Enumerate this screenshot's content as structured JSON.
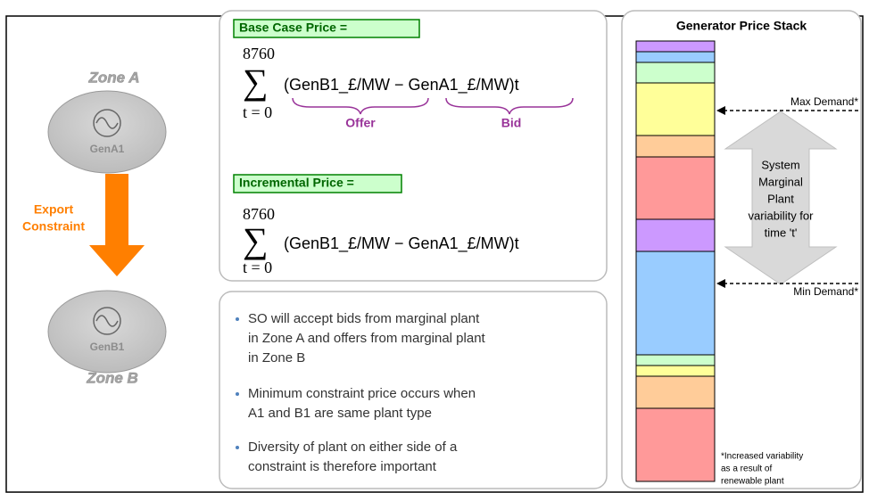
{
  "left": {
    "zone_a": "Zone A",
    "gen_a": "GenA1",
    "export": [
      "Export",
      "Constraint"
    ],
    "gen_b": "GenB1",
    "zone_b": "Zone B"
  },
  "base_case": {
    "label": "Base Case Price =",
    "upper": "8760",
    "sigma": "∑",
    "expr": "(GenB1_£/MW − GenA1_£/MW)t",
    "lower": "t = 0",
    "offer": "Offer",
    "bid": "Bid"
  },
  "incremental": {
    "label": "Incremental Price =",
    "upper": "8760",
    "sigma": "∑",
    "expr": "(GenB1_£/MW − GenA1_£/MW)t",
    "lower": "t = 0"
  },
  "bullets": [
    [
      "SO will accept bids from marginal plant",
      "in Zone A and offers from marginal plant",
      "in Zone B"
    ],
    [
      "Minimum constraint price occurs when",
      "A1 and B1 are same plant type"
    ],
    [
      "Diversity of plant on either side of a",
      "constraint is therefore important"
    ]
  ],
  "stack": {
    "title": "Generator Price Stack",
    "max_demand": "Max Demand*",
    "min_demand": "Min Demand*",
    "variability": [
      "System",
      "Marginal",
      "Plant",
      "variability for",
      "time 't'"
    ],
    "footnote": [
      "*Increased variability",
      "as a result of",
      "renewable plant"
    ]
  }
}
